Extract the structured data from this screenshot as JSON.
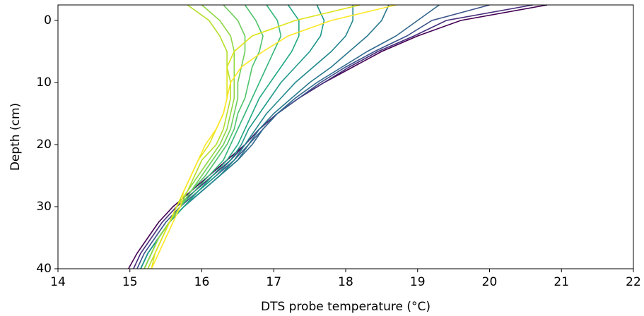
{
  "chart_data": {
    "type": "line",
    "xlabel": "DTS probe temperature (°C)",
    "ylabel": "Depth (cm)",
    "xlim": [
      14,
      22
    ],
    "xticks": [
      14,
      15,
      16,
      17,
      18,
      19,
      20,
      21,
      22
    ],
    "ylim": [
      -2.5,
      40
    ],
    "yticks": [
      0,
      10,
      20,
      30,
      40
    ],
    "y_inverted": true,
    "grid": false,
    "y": [
      -2.5,
      0,
      2.5,
      5,
      7.5,
      10,
      12.5,
      15,
      17.5,
      20,
      22.5,
      25,
      27.5,
      30,
      32.5,
      35,
      37.5,
      40
    ],
    "series": [
      {
        "color": "#440154",
        "values": [
          20.8,
          19.6,
          19.0,
          18.5,
          18.1,
          17.7,
          17.35,
          17.05,
          16.8,
          16.6,
          16.35,
          16.1,
          15.85,
          15.6,
          15.4,
          15.25,
          15.1,
          14.98
        ]
      },
      {
        "color": "#472d7b",
        "values": [
          20.6,
          19.4,
          18.95,
          18.45,
          18.05,
          17.7,
          17.35,
          17.05,
          16.8,
          16.6,
          16.4,
          16.15,
          15.9,
          15.65,
          15.45,
          15.3,
          15.15,
          15.05
        ]
      },
      {
        "color": "#3b528b",
        "values": [
          20.0,
          19.2,
          18.85,
          18.4,
          18.0,
          17.65,
          17.35,
          17.05,
          16.85,
          16.65,
          16.45,
          16.2,
          15.95,
          15.7,
          15.5,
          15.35,
          15.2,
          15.1
        ]
      },
      {
        "color": "#31688e",
        "values": [
          19.3,
          19.0,
          18.7,
          18.3,
          17.95,
          17.6,
          17.3,
          17.05,
          16.85,
          16.7,
          16.5,
          16.25,
          16.0,
          15.75,
          15.55,
          15.4,
          15.25,
          15.15
        ]
      },
      {
        "color": "#2a788e",
        "values": [
          18.6,
          18.5,
          18.3,
          18.05,
          17.8,
          17.5,
          17.25,
          17.0,
          16.8,
          16.65,
          16.5,
          16.25,
          16.0,
          15.75,
          15.55,
          15.4,
          15.25,
          15.15
        ]
      },
      {
        "color": "#23888e",
        "values": [
          18.1,
          18.1,
          18.0,
          17.8,
          17.55,
          17.3,
          17.1,
          16.9,
          16.75,
          16.6,
          16.45,
          16.25,
          16.0,
          15.75,
          15.55,
          15.4,
          15.25,
          15.15
        ]
      },
      {
        "color": "#1f988b",
        "values": [
          17.6,
          17.7,
          17.65,
          17.5,
          17.3,
          17.1,
          16.95,
          16.8,
          16.65,
          16.55,
          16.4,
          16.2,
          15.95,
          15.75,
          15.55,
          15.4,
          15.25,
          15.15
        ]
      },
      {
        "color": "#22a884",
        "values": [
          17.2,
          17.35,
          17.35,
          17.25,
          17.1,
          16.95,
          16.8,
          16.7,
          16.6,
          16.5,
          16.35,
          16.15,
          15.95,
          15.75,
          15.55,
          15.4,
          15.3,
          15.2
        ]
      },
      {
        "color": "#35b779",
        "values": [
          16.9,
          17.05,
          17.1,
          17.0,
          16.9,
          16.8,
          16.7,
          16.6,
          16.5,
          16.4,
          16.3,
          16.1,
          15.9,
          15.7,
          15.55,
          15.4,
          15.3,
          15.2
        ]
      },
      {
        "color": "#4ec36b",
        "values": [
          16.6,
          16.75,
          16.85,
          16.8,
          16.7,
          16.65,
          16.6,
          16.5,
          16.45,
          16.35,
          16.2,
          16.05,
          15.85,
          15.7,
          15.55,
          15.4,
          15.3,
          15.2
        ]
      },
      {
        "color": "#6ccd5a",
        "values": [
          16.3,
          16.5,
          16.6,
          16.6,
          16.55,
          16.5,
          16.5,
          16.45,
          16.4,
          16.3,
          16.15,
          16.0,
          15.85,
          15.7,
          15.55,
          15.4,
          15.3,
          15.2
        ]
      },
      {
        "color": "#8fd744",
        "values": [
          16.0,
          16.25,
          16.4,
          16.45,
          16.45,
          16.45,
          16.45,
          16.4,
          16.35,
          16.25,
          16.1,
          15.95,
          15.8,
          15.7,
          15.55,
          15.4,
          15.3,
          15.2
        ]
      },
      {
        "color": "#b5de2b",
        "values": [
          15.8,
          16.1,
          16.25,
          16.35,
          16.35,
          16.4,
          16.4,
          16.35,
          16.3,
          16.2,
          16.0,
          15.9,
          15.8,
          15.65,
          15.55,
          15.45,
          15.35,
          15.25
        ]
      },
      {
        "color": "#dde318",
        "values": [
          18.2,
          17.3,
          16.7,
          16.45,
          16.35,
          16.35,
          16.35,
          16.3,
          16.2,
          16.1,
          15.95,
          15.85,
          15.75,
          15.65,
          15.55,
          15.45,
          15.35,
          15.3
        ]
      },
      {
        "color": "#fde725",
        "values": [
          18.7,
          17.8,
          17.2,
          16.85,
          16.55,
          16.4,
          16.35,
          16.3,
          16.2,
          16.05,
          15.95,
          15.85,
          15.75,
          15.7,
          15.6,
          15.5,
          15.4,
          15.3
        ]
      }
    ]
  }
}
